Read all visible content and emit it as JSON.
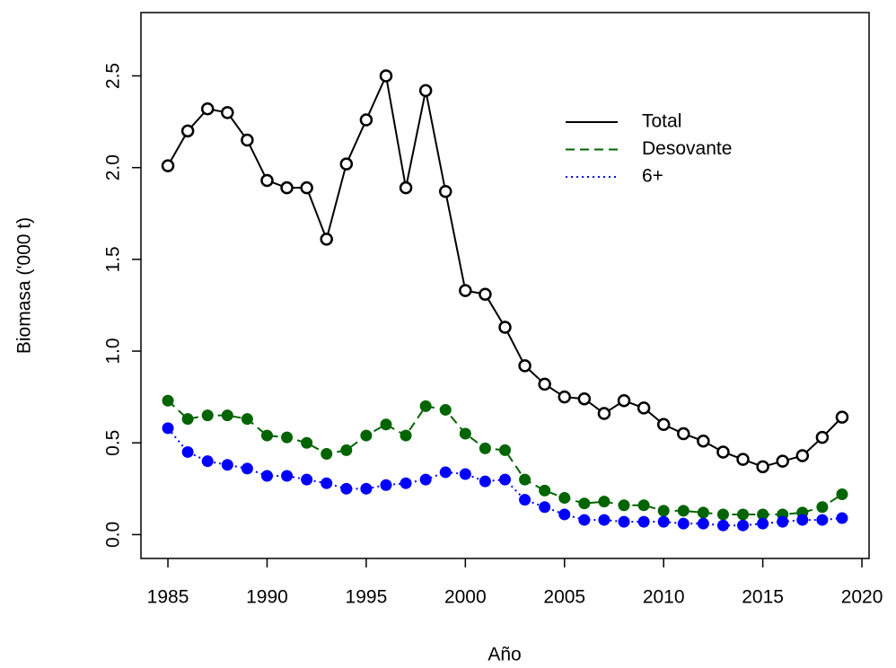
{
  "chart_data": {
    "type": "line",
    "x_label": "Año",
    "y_label": "Biomasa ('000 t)",
    "x": [
      1985,
      1986,
      1987,
      1988,
      1989,
      1990,
      1991,
      1992,
      1993,
      1994,
      1995,
      1996,
      1997,
      1998,
      1999,
      2000,
      2001,
      2002,
      2003,
      2004,
      2005,
      2006,
      2007,
      2008,
      2009,
      2010,
      2011,
      2012,
      2013,
      2014,
      2015,
      2016,
      2017,
      2018,
      2019
    ],
    "series": [
      {
        "name": "Total",
        "color": "#000000",
        "line_style": "solid",
        "marker": "open",
        "values": [
          2.01,
          2.2,
          2.32,
          2.3,
          2.15,
          1.93,
          1.89,
          1.89,
          1.61,
          2.02,
          2.26,
          2.5,
          1.89,
          2.42,
          1.87,
          1.33,
          1.31,
          1.13,
          0.92,
          0.82,
          0.75,
          0.74,
          0.66,
          0.73,
          0.69,
          0.6,
          0.55,
          0.51,
          0.45,
          0.41,
          0.37,
          0.4,
          0.43,
          0.53,
          0.64
        ]
      },
      {
        "name": "Desovante",
        "color": "#006400",
        "line_style": "dashed",
        "marker": "filled",
        "values": [
          0.73,
          0.63,
          0.65,
          0.65,
          0.63,
          0.54,
          0.53,
          0.5,
          0.44,
          0.46,
          0.54,
          0.6,
          0.54,
          0.7,
          0.68,
          0.55,
          0.47,
          0.46,
          0.3,
          0.24,
          0.2,
          0.17,
          0.18,
          0.16,
          0.16,
          0.13,
          0.13,
          0.12,
          0.11,
          0.11,
          0.11,
          0.11,
          0.12,
          0.15,
          0.22
        ]
      },
      {
        "name": "6+",
        "color": "#0000ff",
        "line_style": "dotted",
        "marker": "filled",
        "values": [
          0.58,
          0.45,
          0.4,
          0.38,
          0.36,
          0.32,
          0.32,
          0.3,
          0.28,
          0.25,
          0.25,
          0.27,
          0.28,
          0.3,
          0.34,
          0.33,
          0.29,
          0.3,
          0.19,
          0.15,
          0.11,
          0.08,
          0.08,
          0.07,
          0.07,
          0.07,
          0.06,
          0.06,
          0.05,
          0.05,
          0.06,
          0.07,
          0.08,
          0.08,
          0.09
        ]
      }
    ],
    "xlim": [
      1983.64,
      2020.36
    ],
    "ylim": [
      -0.13,
      2.845
    ],
    "xticks": [
      1985,
      1990,
      1995,
      2000,
      2005,
      2010,
      2015,
      2020
    ],
    "yticks": [
      {
        "value": 0,
        "label": "0.0"
      },
      0.5,
      {
        "value": 1,
        "label": "1.0"
      },
      1.5,
      {
        "value": 2,
        "label": "2.0"
      },
      2.5
    ],
    "legend_position": "top-right"
  }
}
